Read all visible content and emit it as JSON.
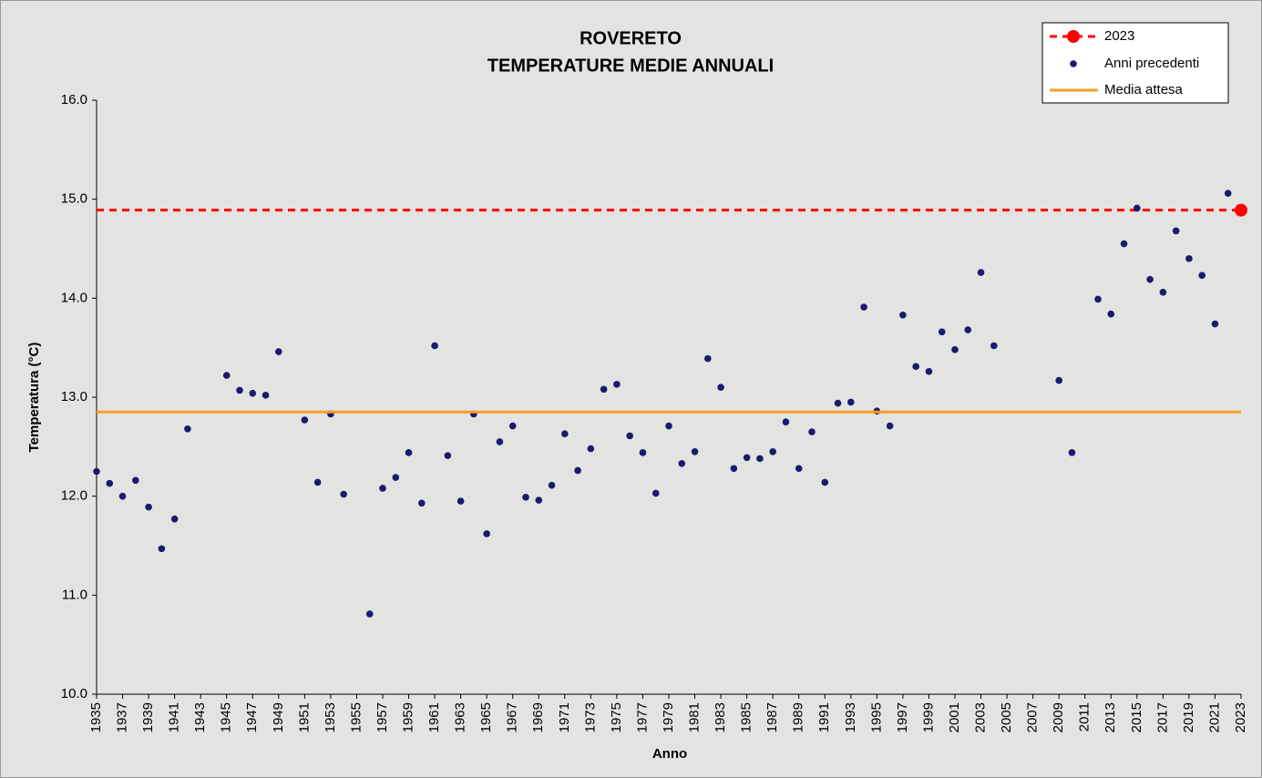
{
  "chart_data": {
    "type": "scatter",
    "title": "ROVERETO",
    "subtitle": "TEMPERATURE MEDIE ANNUALI",
    "x_label": "Anno",
    "y_label": "Temperatura (°C)",
    "xlim": [
      1935,
      2023
    ],
    "xticks": [
      1935,
      1937,
      1939,
      1941,
      1943,
      1945,
      1947,
      1949,
      1951,
      1953,
      1955,
      1957,
      1959,
      1961,
      1963,
      1965,
      1967,
      1969,
      1971,
      1973,
      1975,
      1977,
      1979,
      1981,
      1983,
      1985,
      1987,
      1989,
      1991,
      1993,
      1995,
      1997,
      1999,
      2001,
      2003,
      2005,
      2007,
      2009,
      2011,
      2013,
      2015,
      2017,
      2019,
      2021,
      2023
    ],
    "ylim": [
      10,
      16
    ],
    "yticks": [
      {
        "value": 10,
        "label": "10.0"
      },
      {
        "value": 11,
        "label": "11.0"
      },
      {
        "value": 12,
        "label": "12.0"
      },
      {
        "value": 13,
        "label": "13.0"
      },
      {
        "value": 14,
        "label": "14.0"
      },
      {
        "value": 15,
        "label": "15.0"
      },
      {
        "value": 16,
        "label": "16.0"
      }
    ],
    "series": [
      {
        "name": "2023",
        "color": "#ff0000",
        "style": "dashed-reference",
        "x": [
          2023
        ],
        "values": [
          14.89
        ]
      },
      {
        "name": "Anni precedenti",
        "color": "#1a1a6e",
        "style": "points",
        "x": [
          1935,
          1936,
          1937,
          1938,
          1939,
          1940,
          1941,
          1942,
          1945,
          1946,
          1947,
          1948,
          1949,
          1951,
          1952,
          1953,
          1954,
          1956,
          1957,
          1958,
          1959,
          1960,
          1961,
          1962,
          1963,
          1964,
          1965,
          1966,
          1967,
          1968,
          1969,
          1970,
          1971,
          1972,
          1973,
          1974,
          1975,
          1976,
          1977,
          1978,
          1979,
          1980,
          1981,
          1982,
          1983,
          1984,
          1985,
          1986,
          1987,
          1988,
          1989,
          1990,
          1991,
          1992,
          1993,
          1994,
          1995,
          1996,
          1997,
          1998,
          1999,
          2000,
          2001,
          2002,
          2003,
          2004,
          2009,
          2010,
          2012,
          2013,
          2014,
          2015,
          2016,
          2017,
          2018,
          2019,
          2020,
          2021,
          2022
        ],
        "values": [
          12.25,
          12.13,
          12.0,
          12.16,
          11.89,
          11.47,
          11.77,
          12.68,
          13.22,
          13.07,
          13.04,
          13.02,
          13.46,
          12.77,
          12.14,
          12.83,
          12.02,
          10.81,
          12.08,
          12.19,
          12.44,
          11.93,
          13.52,
          12.41,
          11.95,
          12.83,
          11.62,
          12.55,
          12.71,
          11.99,
          11.96,
          12.11,
          12.63,
          12.26,
          12.48,
          13.08,
          13.13,
          12.61,
          12.44,
          12.03,
          12.71,
          12.33,
          12.45,
          13.39,
          13.1,
          12.28,
          12.39,
          12.38,
          12.45,
          12.75,
          12.28,
          12.65,
          12.14,
          12.94,
          12.95,
          13.91,
          12.86,
          12.71,
          13.83,
          13.31,
          13.26,
          13.66,
          13.48,
          13.68,
          14.26,
          13.52,
          13.17,
          12.44,
          13.99,
          13.84,
          14.55,
          14.91,
          14.19,
          14.06,
          14.68,
          14.4,
          14.23,
          13.74,
          15.06
        ]
      },
      {
        "name": "Media attesa",
        "color": "#f5a020",
        "style": "hline",
        "values": [
          12.85
        ]
      }
    ]
  }
}
